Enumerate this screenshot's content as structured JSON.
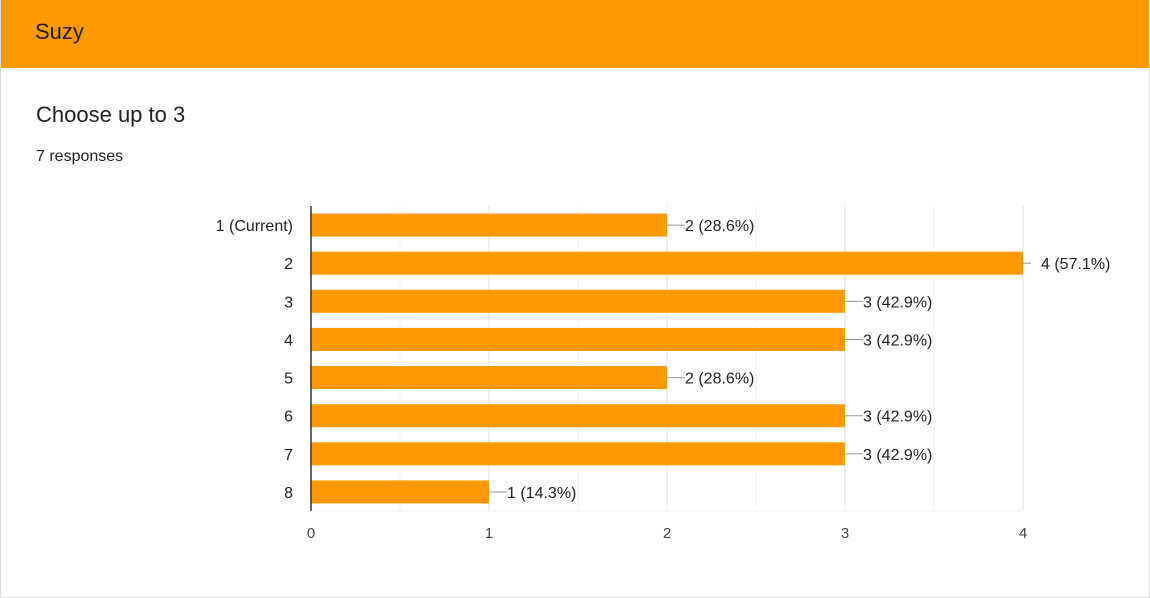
{
  "header": {
    "title": "Suzy"
  },
  "question": {
    "title": "Choose up to 3",
    "responses": "7 responses"
  },
  "colors": {
    "accent": "#ff9900",
    "bar": "#ff9900",
    "grid": "#ebebeb",
    "axis": "#333333"
  },
  "chart_data": {
    "type": "bar",
    "orientation": "horizontal",
    "categories": [
      "1 (Current)",
      "2",
      "3",
      "4",
      "5",
      "6",
      "7",
      "8"
    ],
    "values": [
      2,
      4,
      3,
      3,
      2,
      3,
      3,
      1
    ],
    "value_labels": [
      "2 (28.6%)",
      "4 (57.1%)",
      "3 (42.9%)",
      "3 (42.9%)",
      "2 (28.6%)",
      "3 (42.9%)",
      "3 (42.9%)",
      "1 (14.3%)"
    ],
    "xlim": [
      0,
      4
    ],
    "xticks": [
      0,
      1,
      2,
      3,
      4
    ],
    "grid": true,
    "title": "",
    "xlabel": "",
    "ylabel": ""
  }
}
